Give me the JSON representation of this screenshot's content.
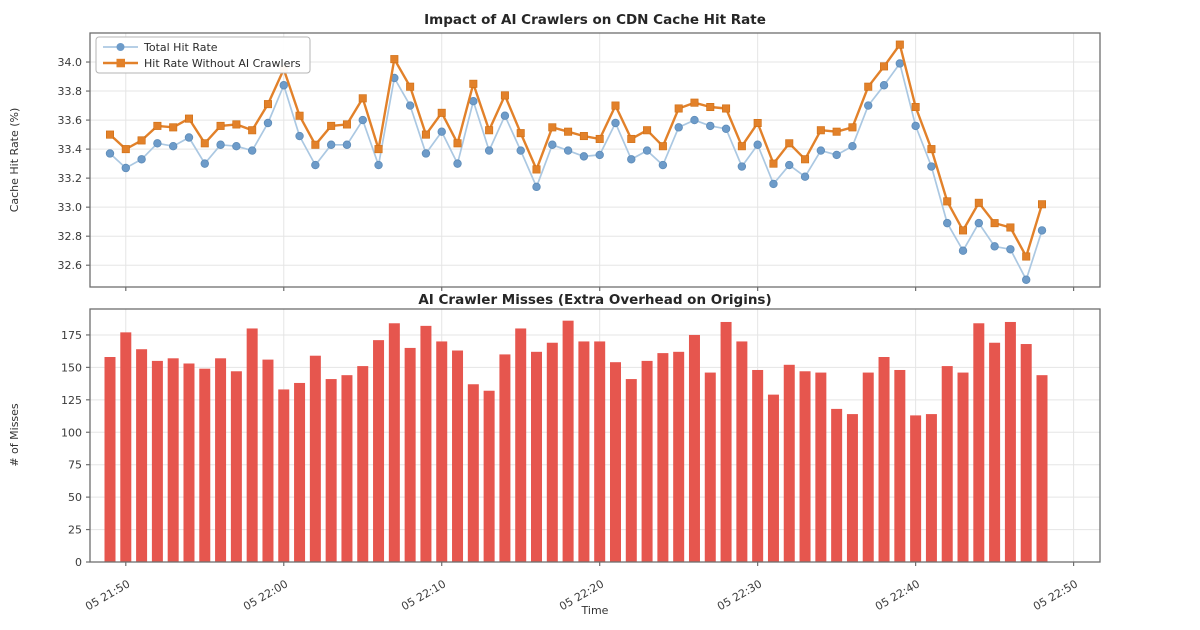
{
  "figure": {
    "background": "#ffffff",
    "grid_color": "#e5e5e5",
    "spine_color": "#6e6e6e"
  },
  "chart_data": [
    {
      "type": "line",
      "title": "Impact of AI Crawlers on CDN Cache Hit Rate",
      "ylabel": "Cache Hit Rate (%)",
      "xlabel": "",
      "ylim": [
        32.45,
        34.2
      ],
      "yticks": [
        32.6,
        32.8,
        33.0,
        33.2,
        33.4,
        33.6,
        33.8,
        34.0
      ],
      "grid": true,
      "legend_position": "upper left",
      "xtick_labels": [
        "05 21:50",
        "05 22:00",
        "05 22:10",
        "05 22:20",
        "05 22:30",
        "05 22:40",
        "05 22:50"
      ],
      "xtick_minutes": [
        1,
        11,
        21,
        31,
        41,
        51,
        61
      ],
      "x_times": [
        "21:49",
        "21:50",
        "21:51",
        "21:52",
        "21:53",
        "21:54",
        "21:55",
        "21:56",
        "21:57",
        "21:58",
        "21:59",
        "22:00",
        "22:01",
        "22:02",
        "22:03",
        "22:04",
        "22:05",
        "22:06",
        "22:07",
        "22:08",
        "22:09",
        "22:10",
        "22:11",
        "22:12",
        "22:13",
        "22:14",
        "22:15",
        "22:16",
        "22:17",
        "22:18",
        "22:19",
        "22:20",
        "22:21",
        "22:22",
        "22:23",
        "22:24",
        "22:25",
        "22:26",
        "22:27",
        "22:28",
        "22:29",
        "22:30",
        "22:31",
        "22:32",
        "22:33",
        "22:34",
        "22:35",
        "22:36",
        "22:37",
        "22:38",
        "22:39",
        "22:40",
        "22:41",
        "22:42",
        "22:43",
        "22:44",
        "22:45",
        "22:46",
        "22:47",
        "22:48"
      ],
      "series": [
        {
          "name": "Total Hit Rate",
          "marker": "circle",
          "color": "#6d9bc9",
          "line_color": "#abc8e2",
          "values": [
            33.37,
            33.27,
            33.33,
            33.44,
            33.42,
            33.48,
            33.3,
            33.43,
            33.42,
            33.39,
            33.58,
            33.84,
            33.49,
            33.29,
            33.43,
            33.43,
            33.6,
            33.29,
            33.89,
            33.7,
            33.37,
            33.52,
            33.3,
            33.73,
            33.39,
            33.63,
            33.39,
            33.14,
            33.43,
            33.39,
            33.35,
            33.36,
            33.58,
            33.33,
            33.39,
            33.29,
            33.55,
            33.6,
            33.56,
            33.54,
            33.28,
            33.43,
            33.16,
            33.29,
            33.21,
            33.39,
            33.36,
            33.42,
            33.7,
            33.84,
            33.99,
            33.56,
            33.28,
            32.89,
            32.7,
            32.89,
            32.73,
            32.71,
            32.5,
            32.84
          ]
        },
        {
          "name": "Hit Rate Without AI Crawlers",
          "marker": "square",
          "color": "#e2812a",
          "line_color": "#e2812a",
          "values": [
            33.5,
            33.4,
            33.46,
            33.56,
            33.55,
            33.61,
            33.44,
            33.56,
            33.57,
            33.53,
            33.71,
            33.95,
            33.63,
            33.43,
            33.56,
            33.57,
            33.75,
            33.4,
            34.02,
            33.83,
            33.5,
            33.65,
            33.44,
            33.85,
            33.53,
            33.77,
            33.51,
            33.26,
            33.55,
            33.52,
            33.49,
            33.47,
            33.7,
            33.47,
            33.53,
            33.42,
            33.68,
            33.72,
            33.69,
            33.68,
            33.42,
            33.58,
            33.3,
            33.44,
            33.33,
            33.53,
            33.52,
            33.55,
            33.83,
            33.97,
            34.12,
            33.69,
            33.4,
            33.04,
            32.84,
            33.03,
            32.89,
            32.86,
            32.66,
            33.02
          ]
        }
      ]
    },
    {
      "type": "bar",
      "title": "AI Crawler Misses (Extra Overhead on Origins)",
      "ylabel": "# of Misses",
      "xlabel": "Time",
      "ylim": [
        0,
        195
      ],
      "yticks": [
        0,
        25,
        50,
        75,
        100,
        125,
        150,
        175
      ],
      "grid": true,
      "bar_color": "#e6564e",
      "xtick_labels": [
        "05 21:50",
        "05 22:00",
        "05 22:10",
        "05 22:20",
        "05 22:30",
        "05 22:40",
        "05 22:50"
      ],
      "xtick_minutes": [
        1,
        11,
        21,
        31,
        41,
        51,
        61
      ],
      "x_times": [
        "21:49",
        "21:50",
        "21:51",
        "21:52",
        "21:53",
        "21:54",
        "21:55",
        "21:56",
        "21:57",
        "21:58",
        "21:59",
        "22:00",
        "22:01",
        "22:02",
        "22:03",
        "22:04",
        "22:05",
        "22:06",
        "22:07",
        "22:08",
        "22:09",
        "22:10",
        "22:11",
        "22:12",
        "22:13",
        "22:14",
        "22:15",
        "22:16",
        "22:17",
        "22:18",
        "22:19",
        "22:20",
        "22:21",
        "22:22",
        "22:23",
        "22:24",
        "22:25",
        "22:26",
        "22:27",
        "22:28",
        "22:29",
        "22:30",
        "22:31",
        "22:32",
        "22:33",
        "22:34",
        "22:35",
        "22:36",
        "22:37",
        "22:38",
        "22:39",
        "22:40",
        "22:41",
        "22:42",
        "22:43",
        "22:44",
        "22:45",
        "22:46",
        "22:47",
        "22:48"
      ],
      "values": [
        158,
        177,
        164,
        155,
        157,
        153,
        149,
        157,
        147,
        180,
        156,
        133,
        138,
        159,
        141,
        144,
        151,
        171,
        184,
        165,
        182,
        170,
        163,
        137,
        132,
        160,
        180,
        162,
        169,
        186,
        170,
        170,
        154,
        141,
        155,
        161,
        162,
        175,
        146,
        185,
        170,
        148,
        129,
        152,
        147,
        146,
        118,
        114,
        146,
        158,
        148,
        113,
        114,
        151,
        146,
        184,
        169,
        185,
        168,
        144
      ]
    }
  ]
}
